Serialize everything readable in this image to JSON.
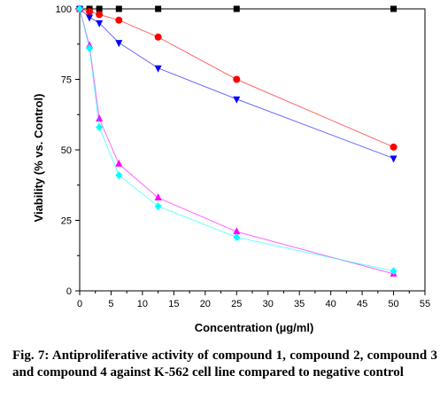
{
  "chart_data": {
    "type": "line",
    "xlabel": "Concentration (µg/ml)",
    "ylabel": "Viability (% vs. Control)",
    "xlim": [
      0,
      55
    ],
    "ylim": [
      0,
      100
    ],
    "xticks": [
      "0",
      "5",
      "10",
      "15",
      "20",
      "25",
      "30",
      "35",
      "40",
      "45",
      "50",
      "55"
    ],
    "yticks": [
      "0",
      "25",
      "50",
      "75",
      "100"
    ],
    "grid": false,
    "series": [
      {
        "color": "#000000",
        "marker": "square",
        "x": [
          0,
          1.56,
          3.125,
          6.25,
          12.5,
          25,
          50
        ],
        "y": [
          100,
          100,
          100,
          100,
          100,
          100,
          100
        ]
      },
      {
        "color": "#ff0000",
        "marker": "circle",
        "x": [
          0,
          1.56,
          3.125,
          6.25,
          12.5,
          25,
          50
        ],
        "y": [
          100,
          99,
          98,
          96,
          90,
          75,
          51
        ]
      },
      {
        "color": "#0000ff",
        "marker": "triangle-down",
        "x": [
          0,
          1.56,
          3.125,
          6.25,
          12.5,
          25,
          50
        ],
        "y": [
          100,
          97,
          95,
          88,
          79,
          68,
          47
        ]
      },
      {
        "color": "#ff00ff",
        "marker": "triangle-up",
        "x": [
          0,
          1.56,
          3.125,
          6.25,
          12.5,
          25,
          50
        ],
        "y": [
          100,
          87,
          61,
          45,
          33,
          21,
          6
        ]
      },
      {
        "color": "#00ffff",
        "marker": "diamond",
        "x": [
          0,
          1.56,
          3.125,
          6.25,
          12.5,
          25,
          50
        ],
        "y": [
          100,
          86,
          58,
          41,
          30,
          19,
          7
        ]
      }
    ]
  },
  "caption": "Fig. 7: Antiproliferative activity of compound 1, compound 2, compound 3 and compound 4 against K-562 cell line compared to negative control"
}
